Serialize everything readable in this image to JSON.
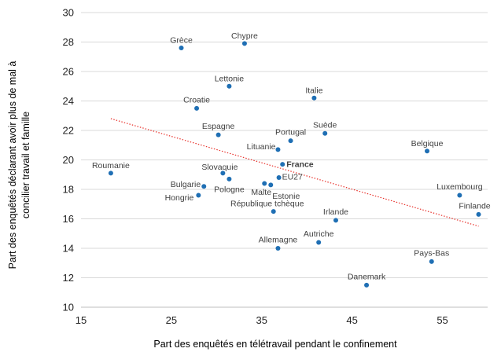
{
  "chart_data": {
    "type": "scatter",
    "title": "",
    "xlabel": "Part des enquêtés en télétravail pendant le confinement",
    "ylabel_lines": [
      "Part des enquêtés déclarant avoir plus de mal à",
      "concilier travail et famille"
    ],
    "xlim": [
      15,
      60
    ],
    "ylim": [
      10,
      30
    ],
    "xticks": [
      "15",
      "25",
      "35",
      "45",
      "55"
    ],
    "yticks": [
      "10",
      "12",
      "14",
      "16",
      "18",
      "20",
      "22",
      "24",
      "26",
      "28",
      "30"
    ],
    "grid": "horizontal",
    "trendline": {
      "style": "dotted",
      "color": "#e8302a",
      "x": [
        18.3,
        59
      ],
      "y": [
        22.8,
        15.5
      ]
    },
    "point_color": "#1f6fb4",
    "points": [
      {
        "label": "Grèce",
        "x": 26.1,
        "y": 27.6
      },
      {
        "label": "Chypre",
        "x": 33.1,
        "y": 27.9
      },
      {
        "label": "Lettonie",
        "x": 31.4,
        "y": 25.0
      },
      {
        "label": "Italie",
        "x": 40.8,
        "y": 24.2
      },
      {
        "label": "Croatie",
        "x": 27.8,
        "y": 23.5
      },
      {
        "label": "Espagne",
        "x": 30.2,
        "y": 21.7
      },
      {
        "label": "Portugal",
        "x": 38.2,
        "y": 21.3
      },
      {
        "label": "Suède",
        "x": 42.0,
        "y": 21.8
      },
      {
        "label": "Lituanie",
        "x": 36.8,
        "y": 20.7
      },
      {
        "label": "Belgique",
        "x": 53.3,
        "y": 20.6
      },
      {
        "label": "Roumanie",
        "x": 18.3,
        "y": 19.1
      },
      {
        "label": "France",
        "x": 37.3,
        "y": 19.7,
        "bold": true
      },
      {
        "label": "Slovaquie",
        "x": 30.7,
        "y": 19.1
      },
      {
        "label": "EU27",
        "x": 36.9,
        "y": 18.8
      },
      {
        "label": "Bulgarie",
        "x": 28.6,
        "y": 18.2
      },
      {
        "label": "Pologne",
        "x": 31.4,
        "y": 18.7
      },
      {
        "label": "Malte",
        "x": 35.3,
        "y": 18.4
      },
      {
        "label": "Estonie",
        "x": 36.0,
        "y": 18.3
      },
      {
        "label": "Hongrie",
        "x": 28.0,
        "y": 17.6
      },
      {
        "label": "Luxembourg",
        "x": 56.9,
        "y": 17.6
      },
      {
        "label": "Finlande",
        "x": 59.0,
        "y": 16.3
      },
      {
        "label": "République tchèque",
        "x": 36.3,
        "y": 16.5
      },
      {
        "label": "Irlande",
        "x": 43.2,
        "y": 15.9
      },
      {
        "label": "Autriche",
        "x": 41.3,
        "y": 14.4
      },
      {
        "label": "Allemagne",
        "x": 36.8,
        "y": 14.0
      },
      {
        "label": "Pays-Bas",
        "x": 53.8,
        "y": 13.1
      },
      {
        "label": "Danemark",
        "x": 46.6,
        "y": 11.5
      }
    ]
  }
}
